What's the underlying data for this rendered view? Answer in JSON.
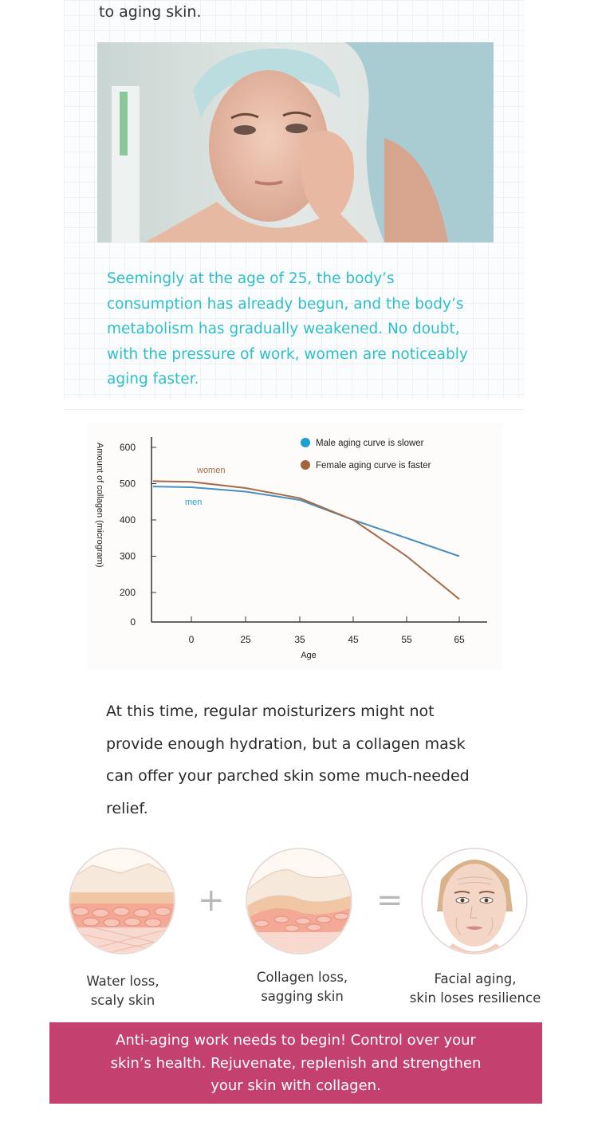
{
  "intro": {
    "tail_text": "to aging skin."
  },
  "photo": {
    "alt": "woman-touching-face-in-mirror"
  },
  "teal_paragraph": {
    "line1": "Seemingly at the age of 25, the body’s",
    "line2": "consumption has already begun, and the body’s",
    "line3": "metabolism has gradually weakened. No doubt,",
    "line4": "with the pressure of work, women are noticeably",
    "line5": "aging faster.",
    "color": "#2ebfc8"
  },
  "chart_data": {
    "type": "line",
    "xlabel": "Age",
    "ylabel": "Amount of collagen (microgram)",
    "x_ticks": [
      "0",
      "25",
      "35",
      "45",
      "55",
      "65"
    ],
    "y_ticks": [
      "600",
      "500",
      "400",
      "300",
      "200",
      "0"
    ],
    "x": [
      0,
      25,
      35,
      45,
      55,
      65
    ],
    "series": [
      {
        "name": "men",
        "color": "#4a8fc0",
        "values": [
          490,
          478,
          455,
          400,
          350,
          300
        ]
      },
      {
        "name": "women",
        "color": "#a46b48",
        "values": [
          505,
          488,
          460,
          400,
          300,
          155
        ]
      }
    ],
    "series_labels": {
      "women": "women",
      "men": "men"
    },
    "legend": [
      {
        "label": "Male aging curve is slower",
        "color": "#1f9ed0"
      },
      {
        "label": "Female aging curve is faster",
        "color": "#a4633a"
      }
    ],
    "legend_position": "top-right",
    "grid": false
  },
  "mid_paragraph": {
    "line1": "At this time, regular moisturizers might not",
    "line2": "provide enough hydration, but a collagen mask",
    "line3": "can offer your parched skin some much-needed",
    "line4": "relief."
  },
  "illustrations": [
    {
      "line1": "Water loss,",
      "line2": "scaly skin"
    },
    {
      "line1": "Collagen loss,",
      "line2": "sagging skin"
    },
    {
      "line1": "Facial aging,",
      "line2": "skin loses resilience"
    }
  ],
  "operators": {
    "plus": "+",
    "equals": "="
  },
  "banner": {
    "line1": "Anti-aging work needs to begin! Control over your",
    "line2": "skin’s health. Rejuvenate, replenish and strengthen",
    "line3": "your skin with collagen.",
    "color": "#c4406f"
  }
}
